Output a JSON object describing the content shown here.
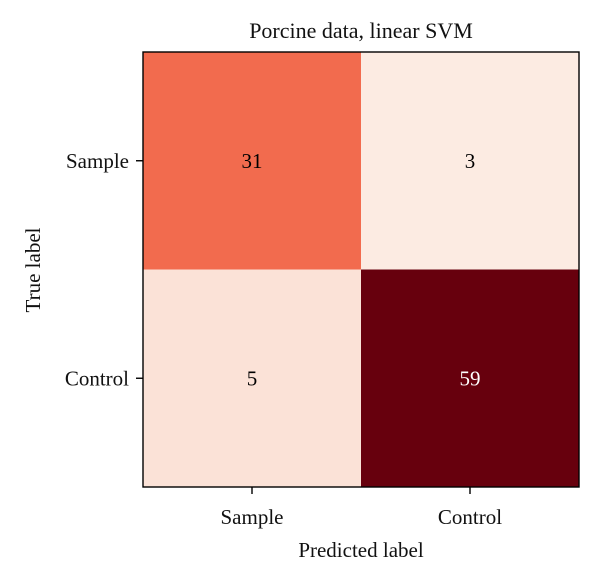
{
  "chart_data": {
    "type": "heatmap",
    "title": "Porcine data, linear SVM",
    "xlabel": "Predicted label",
    "ylabel": "True label",
    "x_categories": [
      "Sample",
      "Control"
    ],
    "y_categories": [
      "Sample",
      "Control"
    ],
    "values": [
      [
        31,
        3
      ],
      [
        5,
        59
      ]
    ],
    "colormap": {
      "name": "Reds",
      "low": "#fcebe2",
      "mid": "#f26b4e",
      "high": "#67000d"
    },
    "text_colors": {
      "on_dark": "#ffffff",
      "on_light": "#000000"
    },
    "grid": false,
    "legend": "none"
  }
}
